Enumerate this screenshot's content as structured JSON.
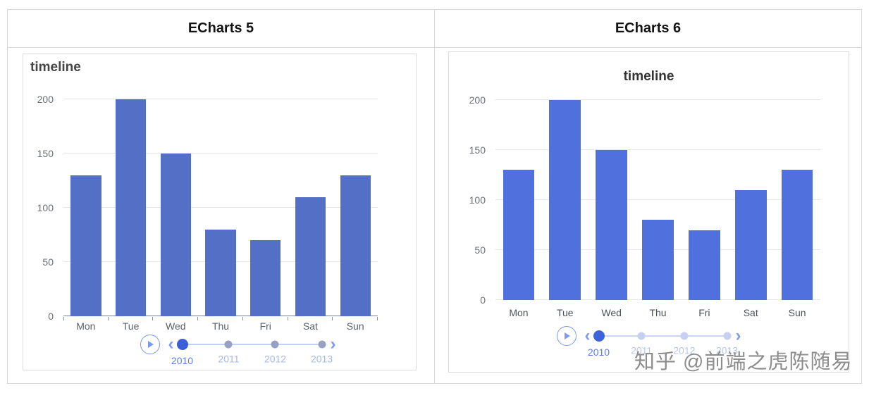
{
  "panels": [
    {
      "title": "ECharts 5"
    },
    {
      "title": "ECharts 6"
    }
  ],
  "icons": {
    "prev": "‹",
    "next": "›",
    "play": "play-triangle-icon"
  },
  "watermark": "知乎 @前端之虎陈随易",
  "chart_data": [
    {
      "type": "bar",
      "panel": "ECharts 5",
      "title": "timeline",
      "title_align": "left",
      "categories": [
        "Mon",
        "Tue",
        "Wed",
        "Thu",
        "Fri",
        "Sat",
        "Sun"
      ],
      "values": [
        130,
        200,
        150,
        80,
        70,
        110,
        130
      ],
      "ylim": [
        0,
        200
      ],
      "yticks": [
        0,
        50,
        100,
        150,
        200
      ],
      "xlabel": "",
      "ylabel": "",
      "grid": true,
      "legend": "none",
      "bar_color": "#5470c6",
      "grid_color": "#e3e6ee",
      "x_axis_line": true,
      "x_axis_line_color": "#7a828e",
      "axis_label_color": "#6E7079",
      "x_label_color": "#5a6068",
      "timeline": {
        "years": [
          "2010",
          "2011",
          "2012",
          "2013"
        ],
        "selected_index": 0,
        "selected_color": "#3a60d7",
        "dot_color": "#96a1c4",
        "track_color": "#c2cff3",
        "selected_label_color": "#5d7ce2",
        "label_color": "#a6b7ec",
        "control_color": "#7c99e6"
      }
    },
    {
      "type": "bar",
      "panel": "ECharts 6",
      "title": "timeline",
      "title_align": "center",
      "categories": [
        "Mon",
        "Tue",
        "Wed",
        "Thu",
        "Fri",
        "Sat",
        "Sun"
      ],
      "values": [
        130,
        200,
        150,
        80,
        70,
        110,
        130
      ],
      "ylim": [
        0,
        200
      ],
      "yticks": [
        0,
        50,
        100,
        150,
        200
      ],
      "xlabel": "",
      "ylabel": "",
      "grid": true,
      "legend": "none",
      "bar_color": "#5070dd",
      "grid_color": "#e4e7ef",
      "x_axis_line": false,
      "x_axis_line_color": "#e4e7ef",
      "axis_label_color": "#6E7079",
      "x_label_color": "#4c525a",
      "timeline": {
        "years": [
          "2010",
          "2011",
          "2012",
          "2013"
        ],
        "selected_index": 0,
        "selected_color": "#3d63d8",
        "dot_color": "#c5d0f2",
        "track_color": "#cbd6f4",
        "selected_label_color": "#5d7ce2",
        "label_color": "#b9c7f0",
        "control_color": "#7e9be8"
      }
    }
  ]
}
